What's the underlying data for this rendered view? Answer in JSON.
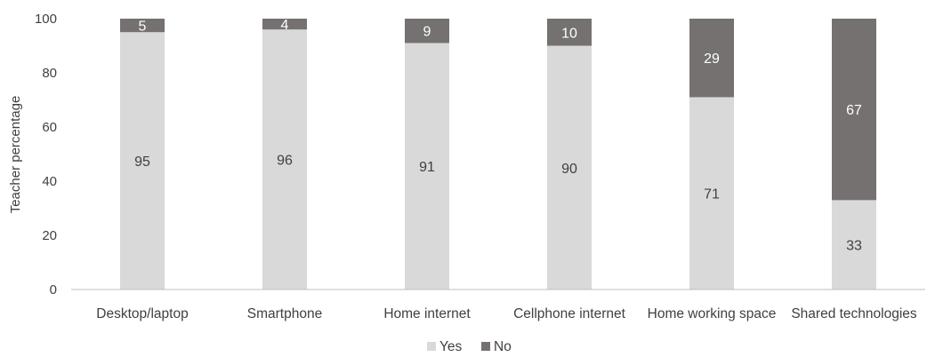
{
  "chart_data": {
    "type": "bar",
    "stacked": true,
    "categories": [
      "Desktop/laptop",
      "Smartphone",
      "Home internet",
      "Cellphone internet",
      "Home working space",
      "Shared technologies"
    ],
    "series": [
      {
        "name": "Yes",
        "values": [
          95,
          96,
          91,
          90,
          71,
          33
        ],
        "color": "#d9d9d9"
      },
      {
        "name": "No",
        "values": [
          5,
          4,
          9,
          10,
          29,
          67
        ],
        "color": "#767171"
      }
    ],
    "title": "",
    "xlabel": "",
    "ylabel": "Teacher percentage",
    "ylim": [
      0,
      100
    ],
    "yticks": [
      0,
      20,
      40,
      60,
      80,
      100
    ],
    "grid": false,
    "legend_position": "bottom"
  }
}
